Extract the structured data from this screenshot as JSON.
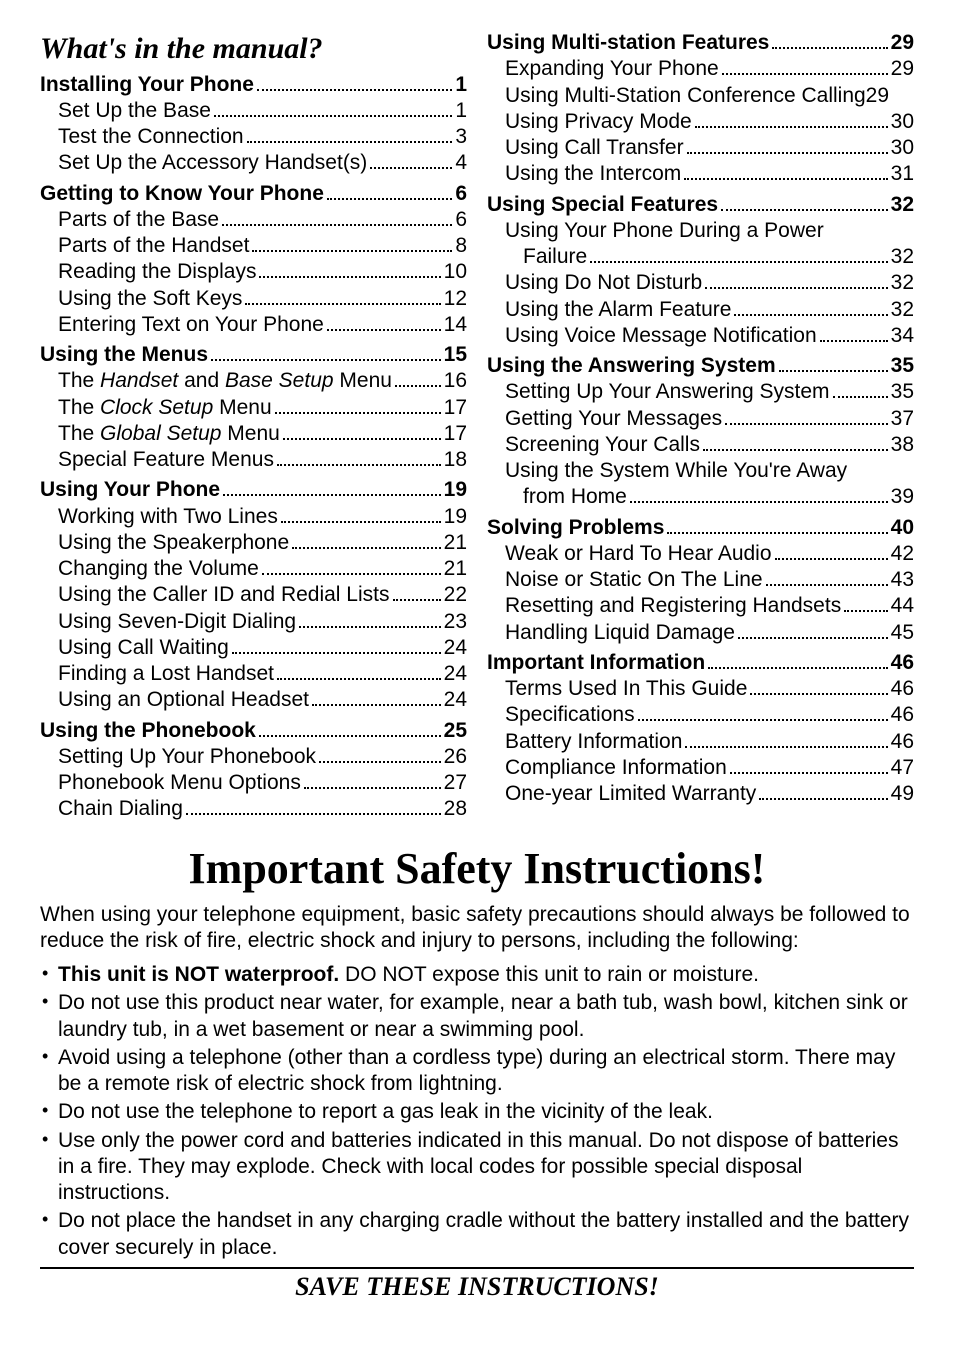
{
  "toc_title": "What's in the manual?",
  "left": [
    {
      "bold": true,
      "label": "Installing Your Phone",
      "page": "1"
    },
    {
      "bold": false,
      "label": "Set Up the Base",
      "page": "1"
    },
    {
      "bold": false,
      "label": "Test the Connection",
      "page": "3"
    },
    {
      "bold": false,
      "label": "Set Up the Accessory Handset(s)",
      "page": "4"
    },
    {
      "bold": true,
      "label": "Getting to Know Your Phone",
      "page": "6",
      "gap": true
    },
    {
      "bold": false,
      "label": "Parts of the Base",
      "page": "6"
    },
    {
      "bold": false,
      "label": "Parts of the Handset",
      "page": "8"
    },
    {
      "bold": false,
      "label": "Reading the Displays",
      "page": "10"
    },
    {
      "bold": false,
      "label": "Using the Soft Keys",
      "page": "12"
    },
    {
      "bold": false,
      "label": "Entering Text on Your Phone",
      "page": "14"
    },
    {
      "bold": true,
      "label": "Using the Menus",
      "page": "15",
      "gap": true
    },
    {
      "bold": false,
      "label_html": "The <span class='em'>Handset</span> and <span class='em'>Base Setup</span> Menu",
      "page": "16"
    },
    {
      "bold": false,
      "label_html": "The <span class='em'>Clock Setup</span> Menu",
      "page": "17"
    },
    {
      "bold": false,
      "label_html": "The <span class='em'>Global Setup</span> Menu",
      "page": "17"
    },
    {
      "bold": false,
      "label": "Special Feature Menus",
      "page": "18"
    },
    {
      "bold": true,
      "label": "Using Your Phone",
      "page": "19",
      "gap": true
    },
    {
      "bold": false,
      "label": "Working with Two Lines",
      "page": "19"
    },
    {
      "bold": false,
      "label": "Using the Speakerphone",
      "page": "21"
    },
    {
      "bold": false,
      "label": "Changing the Volume",
      "page": "21"
    },
    {
      "bold": false,
      "label": "Using the Caller ID and Redial Lists",
      "page": "22"
    },
    {
      "bold": false,
      "label": "Using Seven-Digit Dialing",
      "page": "23"
    },
    {
      "bold": false,
      "label": "Using Call Waiting",
      "page": "24"
    },
    {
      "bold": false,
      "label": "Finding a Lost Handset",
      "page": "24"
    },
    {
      "bold": false,
      "label": "Using an Optional Headset",
      "page": "24"
    },
    {
      "bold": true,
      "label": "Using the Phonebook",
      "page": "25",
      "gap": true
    },
    {
      "bold": false,
      "label": "Setting Up Your Phonebook",
      "page": "26"
    },
    {
      "bold": false,
      "label": "Phonebook Menu Options",
      "page": "27"
    },
    {
      "bold": false,
      "label": "Chain Dialing",
      "page": "28"
    }
  ],
  "right": [
    {
      "bold": true,
      "label": "Using Multi-station Features",
      "page": "29"
    },
    {
      "bold": false,
      "label": "Expanding Your Phone",
      "page": "29"
    },
    {
      "bold": false,
      "label": "Using Multi-Station Conference Calling",
      "page": "29",
      "nodots": true
    },
    {
      "bold": false,
      "label": "Using Privacy Mode",
      "page": "30"
    },
    {
      "bold": false,
      "label": "Using Call Transfer",
      "page": "30"
    },
    {
      "bold": false,
      "label": "Using the Intercom",
      "page": "31"
    },
    {
      "bold": true,
      "label": "Using Special Features",
      "page": "32",
      "gap": true
    },
    {
      "bold": false,
      "label": "Using Your Phone During a Power",
      "wrap2": "Failure",
      "page": "32"
    },
    {
      "bold": false,
      "label": "Using Do Not Disturb",
      "page": "32"
    },
    {
      "bold": false,
      "label": "Using the Alarm Feature",
      "page": "32"
    },
    {
      "bold": false,
      "label": "Using Voice Message Notification",
      "page": "34"
    },
    {
      "bold": true,
      "label": "Using the Answering System",
      "page": "35",
      "gap": true
    },
    {
      "bold": false,
      "label": "Setting Up Your Answering System",
      "page": "35"
    },
    {
      "bold": false,
      "label": "Getting Your Messages",
      "page": "37"
    },
    {
      "bold": false,
      "label": "Screening Your Calls",
      "page": "38"
    },
    {
      "bold": false,
      "label": "Using the System While You're Away",
      "wrap2": "from Home",
      "page": "39"
    },
    {
      "bold": true,
      "label": "Solving Problems",
      "page": "40",
      "gap": true
    },
    {
      "bold": false,
      "label": "Weak or Hard To Hear Audio",
      "page": "42"
    },
    {
      "bold": false,
      "label": "Noise or Static On The Line",
      "page": "43"
    },
    {
      "bold": false,
      "label": "Resetting and Registering Handsets",
      "page": "44"
    },
    {
      "bold": false,
      "label": "Handling Liquid Damage",
      "page": "45"
    },
    {
      "bold": true,
      "label": "Important Information",
      "page": "46",
      "gap": true
    },
    {
      "bold": false,
      "label": "Terms Used In This Guide",
      "page": "46"
    },
    {
      "bold": false,
      "label": "Specifications",
      "page": "46"
    },
    {
      "bold": false,
      "label": "Battery Information",
      "page": "46"
    },
    {
      "bold": false,
      "label": "Compliance Information",
      "page": "47"
    },
    {
      "bold": false,
      "label": "One-year Limited Warranty",
      "page": "49"
    }
  ],
  "safety": {
    "heading": "Important Safety Instructions!",
    "intro": "When using your telephone equipment, basic safety precautions should always be followed to reduce the risk of fire, electric shock and injury to persons, including the following:",
    "bullets": [
      {
        "html": "<b>This unit is NOT waterproof.</b> DO NOT expose this unit to rain or moisture."
      },
      {
        "text": "Do not use this product near water, for example, near a bath tub, wash bowl, kitchen sink or laundry tub, in a wet basement or near a swimming pool."
      },
      {
        "text": "Avoid using a telephone (other than a cordless type) during an electrical storm. There may be a remote risk of electric shock from lightning."
      },
      {
        "text": "Do not use the telephone to report a gas leak in the vicinity of the leak."
      },
      {
        "text": "Use only the power cord and batteries indicated in this manual. Do not dispose of batteries in a fire. They may explode. Check with local codes for possible special disposal instructions."
      },
      {
        "text": "Do not place the handset in any charging cradle without the battery installed and the battery cover securely in place."
      }
    ],
    "save": "SAVE THESE INSTRUCTIONS!"
  }
}
